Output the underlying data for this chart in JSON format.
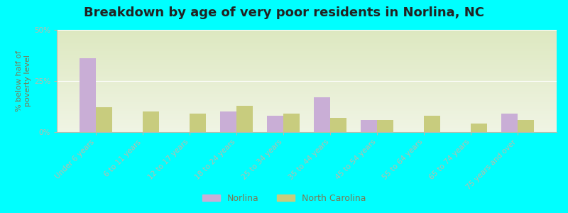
{
  "title": "Breakdown by age of very poor residents in Norlina, NC",
  "ylabel": "% below half of\npoverty level",
  "categories": [
    "Under 6 years",
    "6 to 11 years",
    "12 to 17 years",
    "18 to 24 years",
    "25 to 34 years",
    "35 to 44 years",
    "45 to 54 years",
    "55 to 64 years",
    "65 to 74 years",
    "75 years and over"
  ],
  "norlina": [
    36,
    0,
    0,
    10,
    8,
    17,
    6,
    0,
    0,
    9
  ],
  "nc": [
    12,
    10,
    9,
    13,
    9,
    7,
    6,
    8,
    4,
    6
  ],
  "norlina_color": "#c9aed6",
  "nc_color": "#c8cc7e",
  "bg_color": "#00ffff",
  "plot_bg_top": "#dde8c0",
  "plot_bg_bottom": "#f0f4e4",
  "ylim": [
    0,
    50
  ],
  "yticks": [
    0,
    25,
    50
  ],
  "ytick_labels": [
    "0%",
    "25%",
    "50%"
  ],
  "title_fontsize": 13,
  "axis_label_fontsize": 8,
  "tick_fontsize": 7.5,
  "legend_label_norlina": "Norlina",
  "legend_label_nc": "North Carolina",
  "bar_width": 0.35,
  "text_color": "#7a7a55",
  "grid_color": "#ffffff",
  "spine_color": "#bbbbaa"
}
